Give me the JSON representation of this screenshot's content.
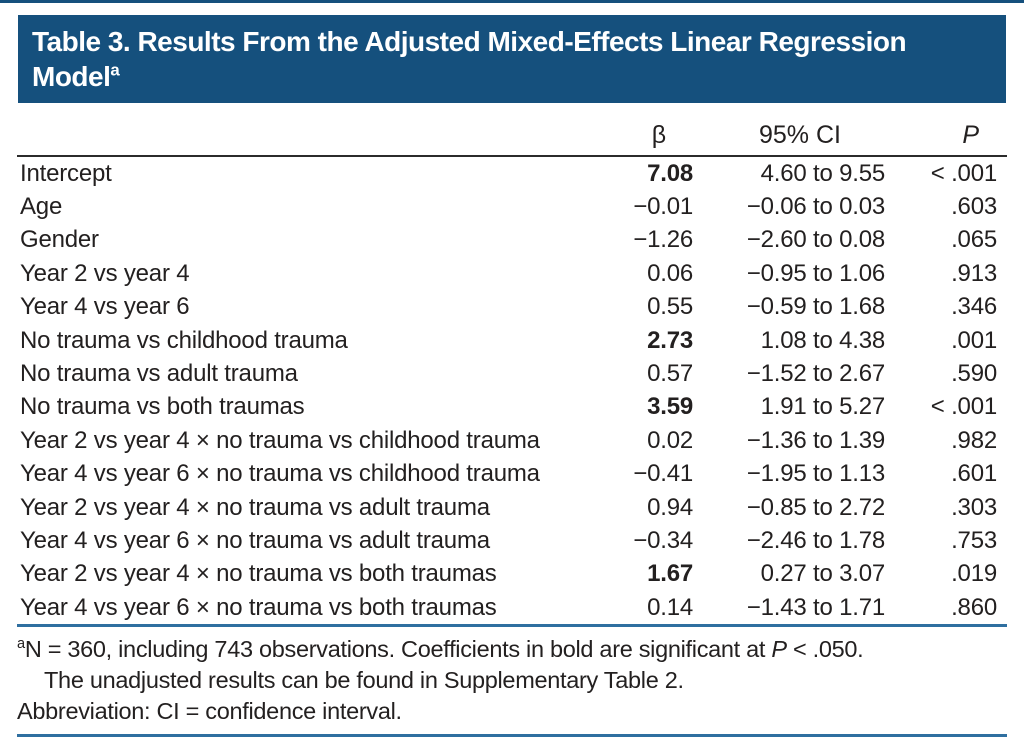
{
  "title": {
    "line1": "Table 3. Results From the Adjusted Mixed-Effects Linear Regression",
    "line2": "Model",
    "superscript": "a"
  },
  "table": {
    "columns": {
      "label": "",
      "beta": "β",
      "ci": "95% CI",
      "p": "P"
    },
    "rows": [
      {
        "label": "Intercept",
        "beta": "7.08",
        "beta_bold": true,
        "ci": "4.60 to 9.55",
        "p": "< .001"
      },
      {
        "label": "Age",
        "beta": "−0.01",
        "beta_bold": false,
        "ci": "−0.06 to 0.03",
        "p": ".603"
      },
      {
        "label": "Gender",
        "beta": "−1.26",
        "beta_bold": false,
        "ci": "−2.60 to 0.08",
        "p": ".065"
      },
      {
        "label": "Year 2 vs year 4",
        "beta": "0.06",
        "beta_bold": false,
        "ci": "−0.95 to 1.06",
        "p": ".913"
      },
      {
        "label": "Year 4 vs year 6",
        "beta": "0.55",
        "beta_bold": false,
        "ci": "−0.59 to 1.68",
        "p": ".346"
      },
      {
        "label": "No trauma vs childhood trauma",
        "beta": "2.73",
        "beta_bold": true,
        "ci": "1.08 to 4.38",
        "p": ".001"
      },
      {
        "label": "No trauma vs adult trauma",
        "beta": "0.57",
        "beta_bold": false,
        "ci": "−1.52 to 2.67",
        "p": ".590"
      },
      {
        "label": "No trauma vs both traumas",
        "beta": "3.59",
        "beta_bold": true,
        "ci": "1.91 to 5.27",
        "p": "< .001"
      },
      {
        "label": "Year 2 vs year 4 × no trauma vs childhood trauma",
        "beta": "0.02",
        "beta_bold": false,
        "ci": "−1.36 to 1.39",
        "p": ".982"
      },
      {
        "label": "Year 4 vs year 6 × no trauma vs childhood trauma",
        "beta": "−0.41",
        "beta_bold": false,
        "ci": "−1.95 to 1.13",
        "p": ".601"
      },
      {
        "label": "Year 2 vs year 4 × no trauma vs adult trauma",
        "beta": "0.94",
        "beta_bold": false,
        "ci": "−0.85 to 2.72",
        "p": ".303"
      },
      {
        "label": "Year 4 vs year 6 × no trauma vs adult trauma",
        "beta": "−0.34",
        "beta_bold": false,
        "ci": "−2.46 to 1.78",
        "p": ".753"
      },
      {
        "label": "Year 2 vs year 4 × no trauma vs both traumas",
        "beta": "1.67",
        "beta_bold": true,
        "ci": "0.27 to 3.07",
        "p": ".019"
      },
      {
        "label": "Year 4 vs year 6 × no trauma vs both traumas",
        "beta": "0.14",
        "beta_bold": false,
        "ci": "−1.43 to 1.71",
        "p": ".860"
      }
    ]
  },
  "footnotes": {
    "note_a": {
      "marker": "a",
      "text1": "N = 360, including 743 observations. Coefficients in bold are significant at ",
      "p_symbol": "P",
      "text2": " < .050."
    },
    "note_a_line2": "The unadjusted results can be found in Supplementary Table 2.",
    "abbreviation": "Abbreviation: CI = confidence interval."
  },
  "colors": {
    "header_bg": "#15507d",
    "rule_blue": "#2f6fa0",
    "text": "#232020"
  }
}
